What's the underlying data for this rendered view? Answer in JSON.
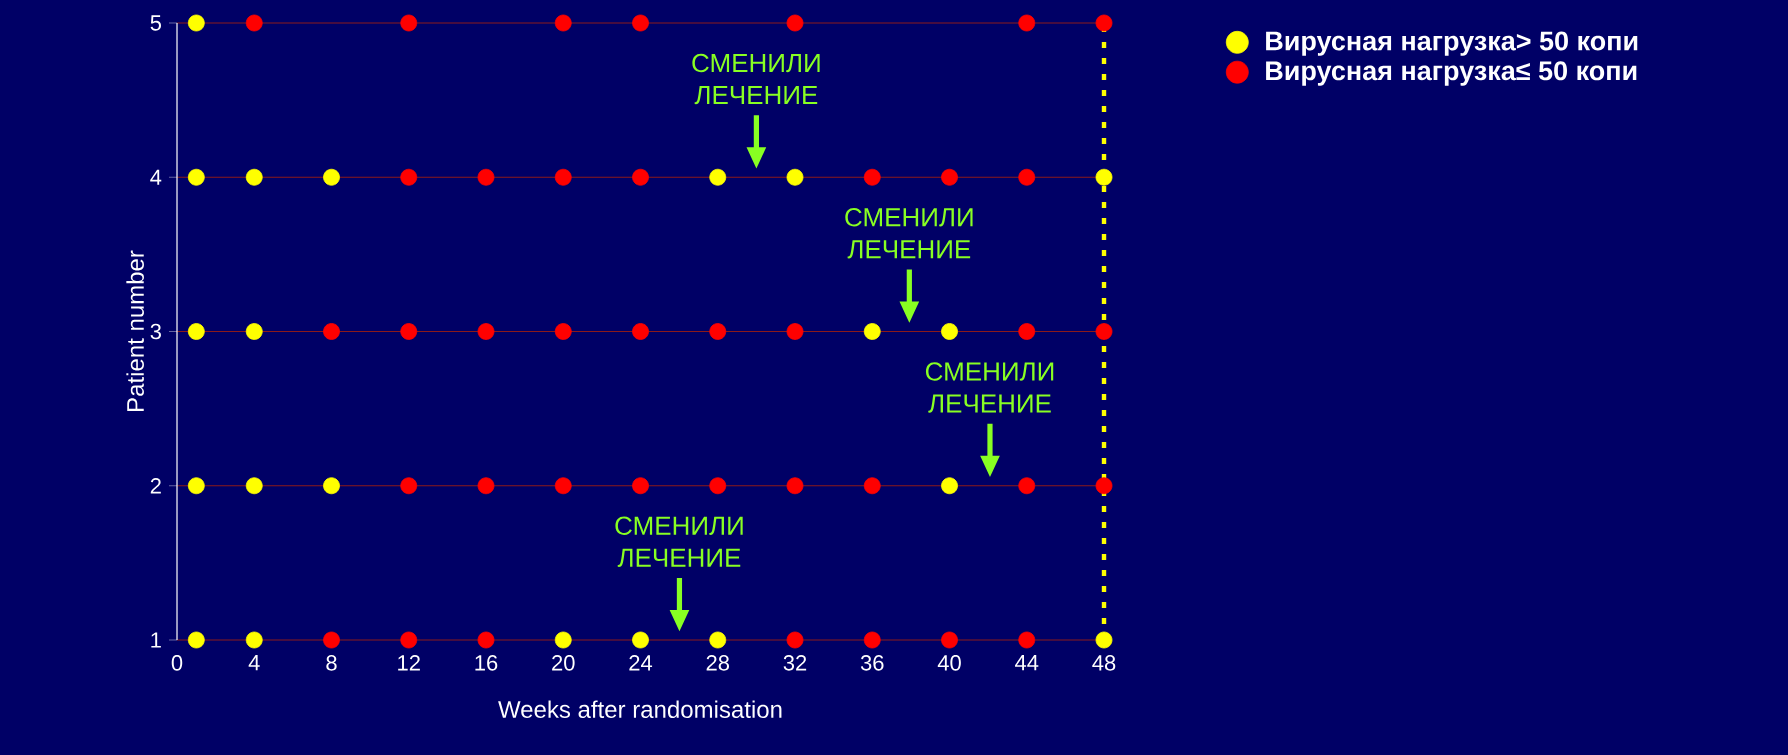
{
  "chart_data": {
    "type": "scatter",
    "xlabel": "Weeks after randomisation",
    "ylabel": "Patient number",
    "xlim": [
      0,
      48
    ],
    "ylim": [
      1,
      5
    ],
    "xticks": [
      0,
      4,
      8,
      12,
      16,
      20,
      24,
      28,
      32,
      36,
      40,
      44,
      48
    ],
    "yticks": [
      1,
      2,
      3,
      4,
      5
    ],
    "grid": "y",
    "legend": "top right",
    "series": [
      {
        "name": "Вирусная нагрузка> 50 копи",
        "color": "#ffff00",
        "x": [
          1,
          1,
          4,
          8,
          28,
          32,
          48,
          1,
          4,
          36,
          40,
          1,
          4,
          8,
          40,
          1,
          4,
          20,
          24,
          28,
          48
        ],
        "values": [
          5,
          4,
          4,
          4,
          4,
          4,
          4,
          3,
          3,
          3,
          3,
          2,
          2,
          2,
          2,
          1,
          1,
          1,
          1,
          1,
          1
        ]
      },
      {
        "name": "Вирусная нагрузка≤ 50 копи",
        "color": "#ff0000",
        "x": [
          4,
          12,
          20,
          24,
          32,
          44,
          48,
          12,
          16,
          20,
          24,
          36,
          40,
          44,
          8,
          12,
          16,
          20,
          24,
          28,
          32,
          44,
          48,
          12,
          16,
          20,
          24,
          28,
          32,
          36,
          44,
          48,
          8,
          12,
          16,
          32,
          36,
          40,
          44
        ],
        "values": [
          5,
          5,
          5,
          5,
          5,
          5,
          5,
          4,
          4,
          4,
          4,
          4,
          4,
          4,
          3,
          3,
          3,
          3,
          3,
          3,
          3,
          3,
          3,
          2,
          2,
          2,
          2,
          2,
          2,
          2,
          2,
          2,
          1,
          1,
          1,
          1,
          1,
          1,
          1
        ]
      }
    ],
    "ref_lines": [
      {
        "axis": "x",
        "value": 48,
        "color": "#ffff00",
        "line_style": "dotted"
      }
    ],
    "annotations": [
      "СМЕНИЛИ ЛЕЧЕНИЕ",
      "СМЕНИЛИ ЛЕЧЕНИЕ",
      "СМЕНИЛИ ЛЕЧЕНИЕ",
      "СМЕНИЛИ ЛЕЧЕНИЕ"
    ]
  }
}
